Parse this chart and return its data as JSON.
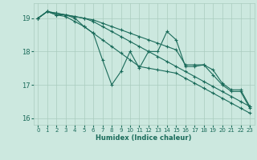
{
  "xlabel": "Humidex (Indice chaleur)",
  "bg_color": "#cce8df",
  "grid_color": "#aaccbf",
  "line_color": "#1a6b5a",
  "xlim": [
    -0.5,
    23.5
  ],
  "ylim": [
    15.8,
    19.45
  ],
  "yticks": [
    16,
    17,
    18,
    19
  ],
  "xticks": [
    0,
    1,
    2,
    3,
    4,
    5,
    6,
    7,
    8,
    9,
    10,
    11,
    12,
    13,
    14,
    15,
    16,
    17,
    18,
    19,
    20,
    21,
    22,
    23
  ],
  "series": [
    [
      19.0,
      19.2,
      19.1,
      19.1,
      19.0,
      18.75,
      18.55,
      17.75,
      17.0,
      17.4,
      18.0,
      17.5,
      18.0,
      18.0,
      18.6,
      18.35,
      17.55,
      17.55,
      17.6,
      17.3,
      17.0,
      16.8,
      16.8,
      16.3
    ],
    [
      19.0,
      19.2,
      19.1,
      19.05,
      18.9,
      18.75,
      18.55,
      18.35,
      18.15,
      17.95,
      17.75,
      17.55,
      17.5,
      17.45,
      17.4,
      17.35,
      17.2,
      17.05,
      16.9,
      16.75,
      16.6,
      16.45,
      16.3,
      16.15
    ],
    [
      19.0,
      19.2,
      19.15,
      19.1,
      19.05,
      19.0,
      18.9,
      18.75,
      18.6,
      18.45,
      18.3,
      18.15,
      18.0,
      17.85,
      17.7,
      17.55,
      17.4,
      17.25,
      17.1,
      16.95,
      16.8,
      16.65,
      16.5,
      16.35
    ],
    [
      19.0,
      19.2,
      19.15,
      19.1,
      19.05,
      19.0,
      18.95,
      18.85,
      18.75,
      18.65,
      18.55,
      18.45,
      18.35,
      18.25,
      18.15,
      18.05,
      17.6,
      17.6,
      17.6,
      17.45,
      17.05,
      16.85,
      16.85,
      16.35
    ]
  ]
}
